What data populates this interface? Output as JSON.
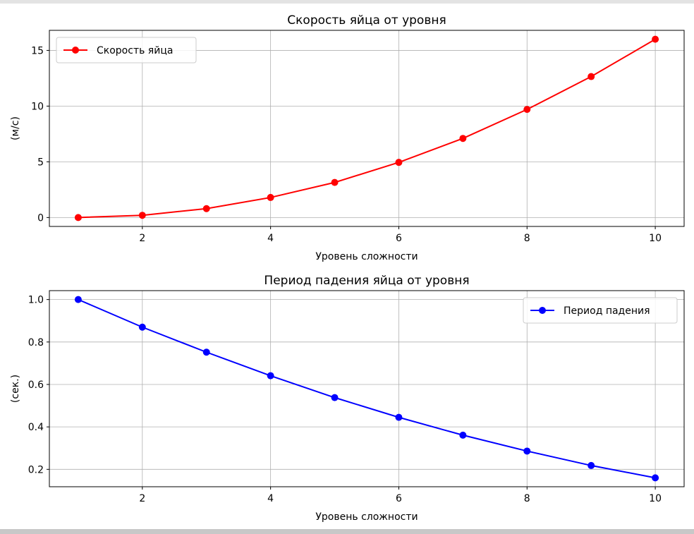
{
  "colors": {
    "series_1": "#ff0000",
    "series_2": "#0000ff",
    "grid": "#b0b0b0",
    "axes": "#000000"
  },
  "chart_data": [
    {
      "type": "line",
      "title": "Скорость яйца от уровня",
      "xlabel": "Уровень сложности",
      "ylabel": "(м/с)",
      "xlim": [
        0.55,
        10.45
      ],
      "ylim": [
        -0.8,
        16.8
      ],
      "xticks": [
        2,
        4,
        6,
        8,
        10
      ],
      "yticks": [
        0,
        5,
        10,
        15
      ],
      "grid": true,
      "legend_position": "top-left",
      "x": [
        1,
        2,
        3,
        4,
        5,
        6,
        7,
        8,
        9,
        10
      ],
      "series": [
        {
          "name": "Скорость яйца",
          "color": "#ff0000",
          "marker": "circle",
          "values": [
            0.0,
            0.2,
            0.8,
            1.8,
            3.15,
            4.95,
            7.1,
            9.7,
            12.65,
            16.0
          ]
        }
      ]
    },
    {
      "type": "line",
      "title": "Период падения яйца от уровня",
      "xlabel": "Уровень сложности",
      "ylabel": "(сек.)",
      "xlim": [
        0.55,
        10.45
      ],
      "ylim": [
        0.118,
        1.042
      ],
      "xticks": [
        2,
        4,
        6,
        8,
        10
      ],
      "yticks": [
        0.2,
        0.4,
        0.6,
        0.8,
        1.0
      ],
      "grid": true,
      "legend_position": "top-right",
      "x": [
        1,
        2,
        3,
        4,
        5,
        6,
        7,
        8,
        9,
        10
      ],
      "series": [
        {
          "name": "Период падения",
          "color": "#0000ff",
          "marker": "circle",
          "values": [
            1.0,
            0.87,
            0.752,
            0.641,
            0.538,
            0.445,
            0.361,
            0.286,
            0.218,
            0.16
          ]
        }
      ]
    }
  ]
}
